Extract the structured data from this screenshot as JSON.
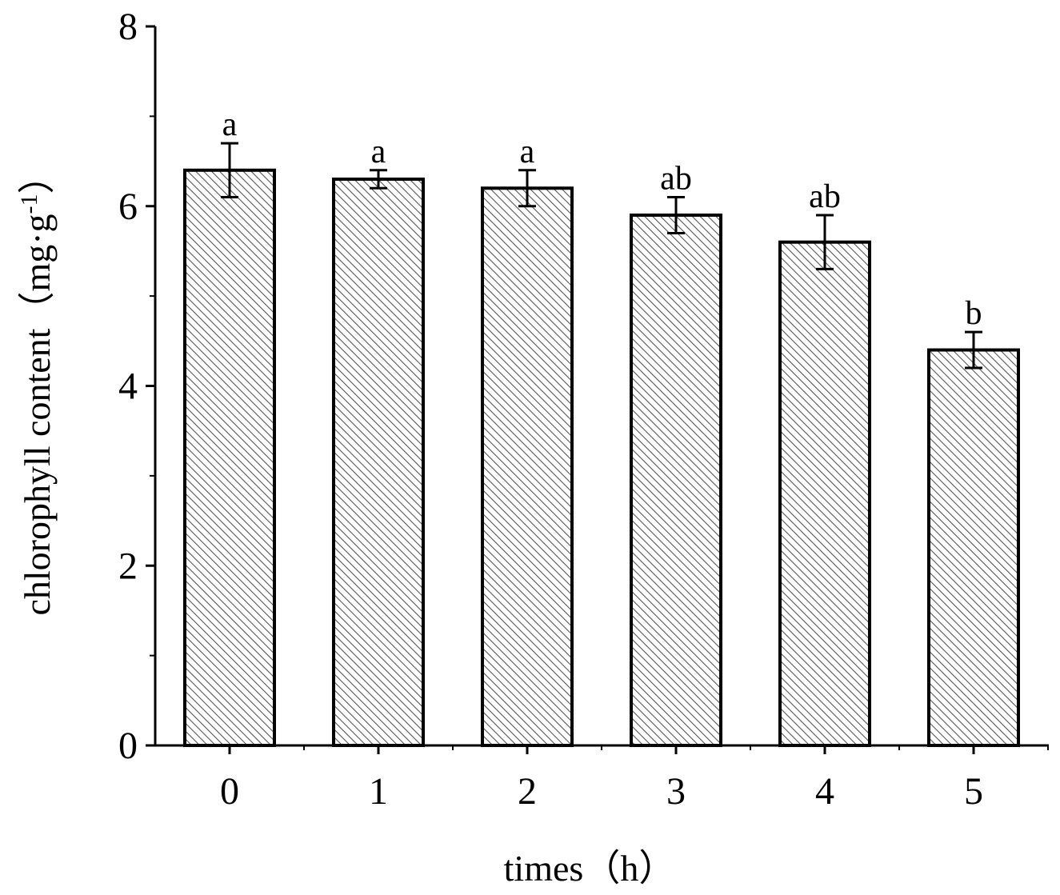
{
  "chart_data": {
    "type": "bar",
    "title": "",
    "xlabel": "times（h）",
    "ylabel": "chlorophyll content（mg·g",
    "ylabel_sup": "-1",
    "ylabel_close": "）",
    "categories": [
      "0",
      "1",
      "2",
      "3",
      "4",
      "5"
    ],
    "values": [
      6.4,
      6.3,
      6.2,
      5.9,
      5.6,
      4.4
    ],
    "errors": [
      0.3,
      0.1,
      0.2,
      0.2,
      0.3,
      0.2
    ],
    "significance": [
      "a",
      "a",
      "a",
      "ab",
      "ab",
      "b"
    ],
    "ylim": [
      0,
      8
    ],
    "yticks": [
      "0",
      "2",
      "4",
      "6",
      "8"
    ],
    "bar_fill": "hatched",
    "bar_stroke_color": "#000000",
    "hatch_color": "#555555",
    "grid": false,
    "legend": false
  }
}
